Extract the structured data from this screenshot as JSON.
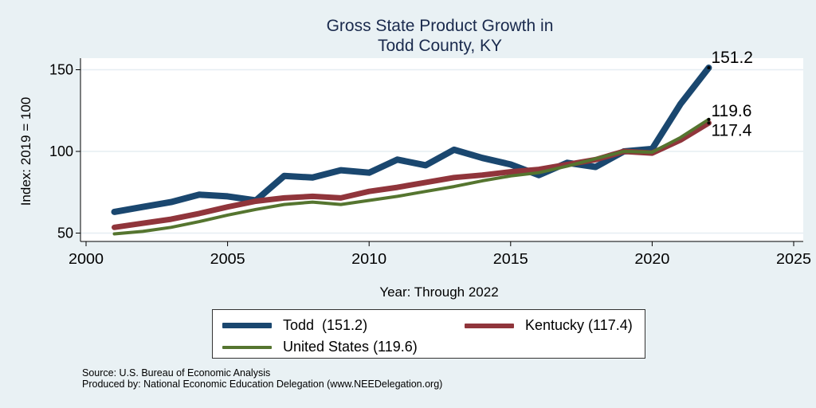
{
  "chart_data": {
    "type": "line",
    "title": "Gross State Product Growth in Todd County, KY",
    "title_lines": [
      "Gross State Product Growth in",
      "Todd County, KY"
    ],
    "xlabel": "Year: Through 2022",
    "ylabel": "Index: 2019 = 100",
    "xlim": [
      2000,
      2025
    ],
    "ylim": [
      45,
      157
    ],
    "x_ticks": [
      2000,
      2005,
      2010,
      2015,
      2020,
      2025
    ],
    "y_ticks": [
      50,
      100,
      150
    ],
    "grid": true,
    "x": [
      2001,
      2002,
      2003,
      2004,
      2005,
      2006,
      2007,
      2008,
      2009,
      2010,
      2011,
      2012,
      2013,
      2014,
      2015,
      2016,
      2017,
      2018,
      2019,
      2020,
      2021,
      2022
    ],
    "series": [
      {
        "name": "Todd",
        "legend_label": "Todd  (151.2)",
        "color": "#1a476f",
        "end_label": "151.2",
        "values": [
          63,
          66,
          69,
          73.5,
          72.5,
          70,
          85,
          84,
          88.5,
          87,
          95,
          91.5,
          101,
          96,
          92,
          85.5,
          93,
          90.5,
          100,
          101.5,
          129,
          151.2
        ]
      },
      {
        "name": "Kentucky",
        "legend_label": "Kentucky (117.4)",
        "color": "#90353b",
        "end_label": "117.4",
        "values": [
          53.5,
          56,
          58.5,
          62,
          66,
          69.5,
          71.5,
          72.5,
          71.5,
          75.5,
          78,
          81,
          84,
          85.5,
          87.5,
          89,
          92,
          95,
          100,
          99,
          107,
          117.4
        ]
      },
      {
        "name": "United States",
        "legend_label": "United States (119.6)",
        "color": "#55752f",
        "end_label": "119.6",
        "values": [
          49.5,
          51,
          53.5,
          57,
          61,
          64.5,
          67.5,
          69,
          67.5,
          70,
          72.5,
          75.5,
          78.5,
          82,
          85,
          87,
          91,
          95.5,
          100,
          99.5,
          108.5,
          119.6
        ]
      }
    ],
    "legend_position": "bottom"
  },
  "footer": {
    "source": "Source: U.S. Bureau of Economic Analysis",
    "produced_by": "Produced by: National Economic Education Delegation (www.NEEDelegation.org)"
  }
}
